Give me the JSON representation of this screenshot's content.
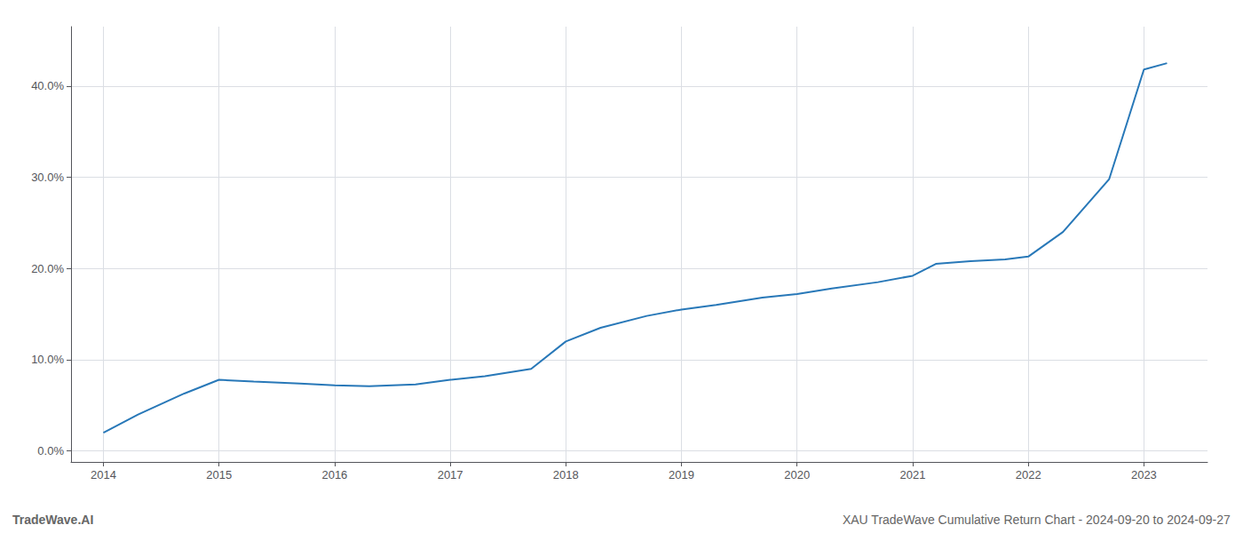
{
  "chart_data": {
    "type": "line",
    "x": [
      2014.0,
      2014.3,
      2014.7,
      2015.0,
      2015.3,
      2015.7,
      2016.0,
      2016.3,
      2016.7,
      2017.0,
      2017.3,
      2017.7,
      2018.0,
      2018.3,
      2018.7,
      2019.0,
      2019.3,
      2019.7,
      2020.0,
      2020.3,
      2020.7,
      2021.0,
      2021.2,
      2021.5,
      2021.8,
      2022.0,
      2022.3,
      2022.7,
      2023.0,
      2023.2
    ],
    "values": [
      0.02,
      0.04,
      0.063,
      0.078,
      0.076,
      0.074,
      0.072,
      0.071,
      0.073,
      0.078,
      0.082,
      0.09,
      0.12,
      0.135,
      0.148,
      0.155,
      0.16,
      0.168,
      0.172,
      0.178,
      0.185,
      0.192,
      0.205,
      0.208,
      0.21,
      0.213,
      0.24,
      0.298,
      0.418,
      0.425
    ],
    "color": "#2878b8",
    "xlim": [
      2013.72,
      2023.55
    ],
    "xticks": [
      2014,
      2015,
      2016,
      2017,
      2018,
      2019,
      2020,
      2021,
      2022,
      2023
    ],
    "ylim": [
      -0.012,
      0.465
    ],
    "yticks": [
      {
        "value": 0.0,
        "label": "0.0%"
      },
      {
        "value": 0.1,
        "label": "10.0%"
      },
      {
        "value": 0.2,
        "label": "20.0%"
      },
      {
        "value": 0.3,
        "label": "30.0%"
      },
      {
        "value": 0.4,
        "label": "40.0%"
      }
    ],
    "grid": true,
    "annotations": [
      "TradeWave.AI",
      "XAU TradeWave Cumulative Return Chart - 2024-09-20 to 2024-09-27"
    ]
  }
}
